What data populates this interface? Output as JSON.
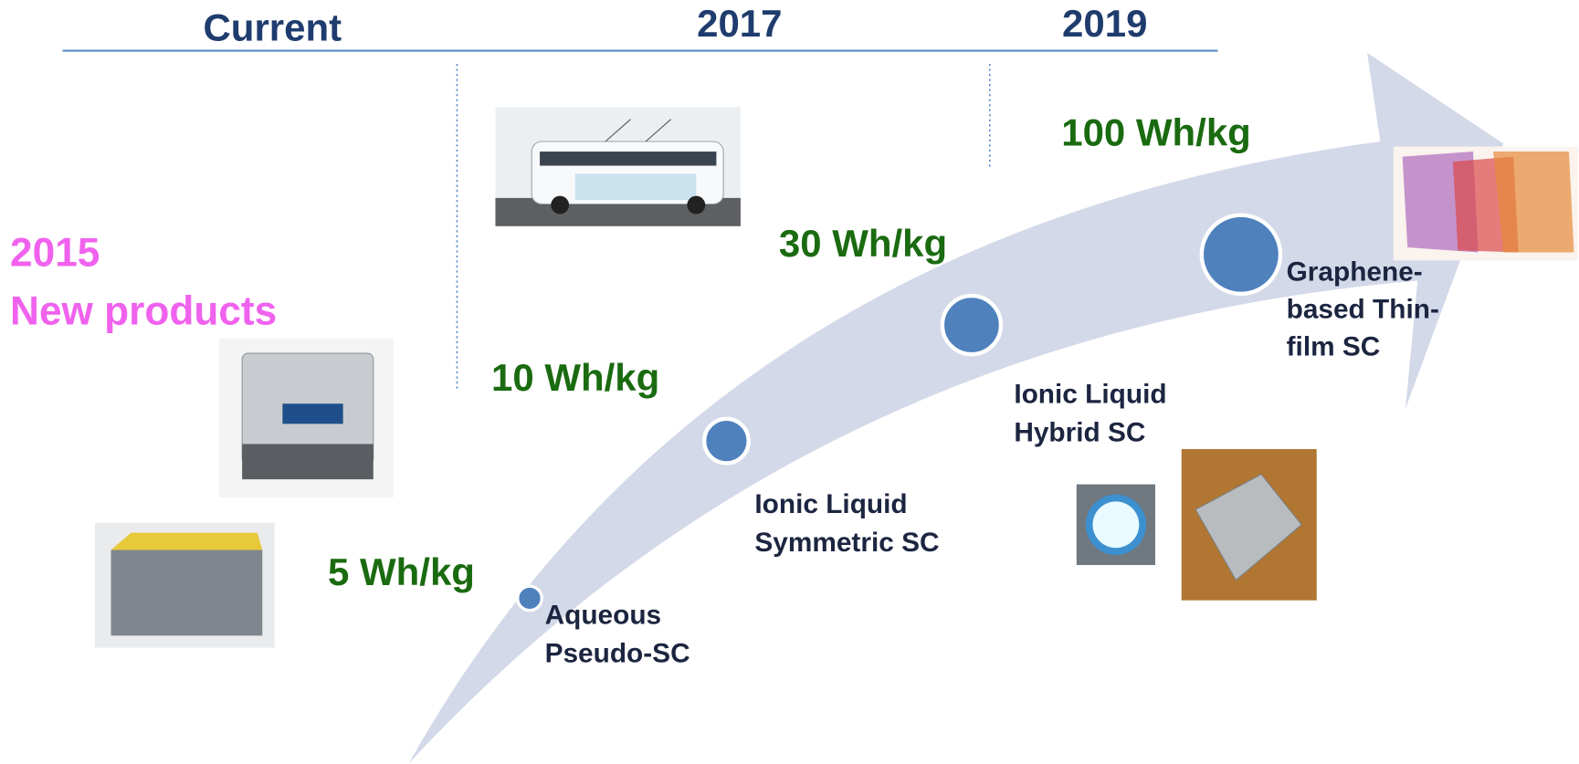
{
  "header": {
    "periods": [
      "Current",
      "2017",
      "2019"
    ]
  },
  "promo": {
    "year": "2015",
    "label": "New products"
  },
  "stages": [
    {
      "energy": "5 Wh/kg",
      "name_lines": [
        "Aqueous",
        "Pseudo-SC"
      ]
    },
    {
      "energy": "10 Wh/kg",
      "name_lines": [
        "Ionic Liquid",
        "Symmetric SC"
      ]
    },
    {
      "energy": "30 Wh/kg",
      "name_lines": [
        "Ionic Liquid",
        "Hybrid SC"
      ]
    },
    {
      "energy": "100 Wh/kg",
      "name_lines": [
        "Graphene-",
        "based Thin-",
        "film SC"
      ]
    }
  ]
}
